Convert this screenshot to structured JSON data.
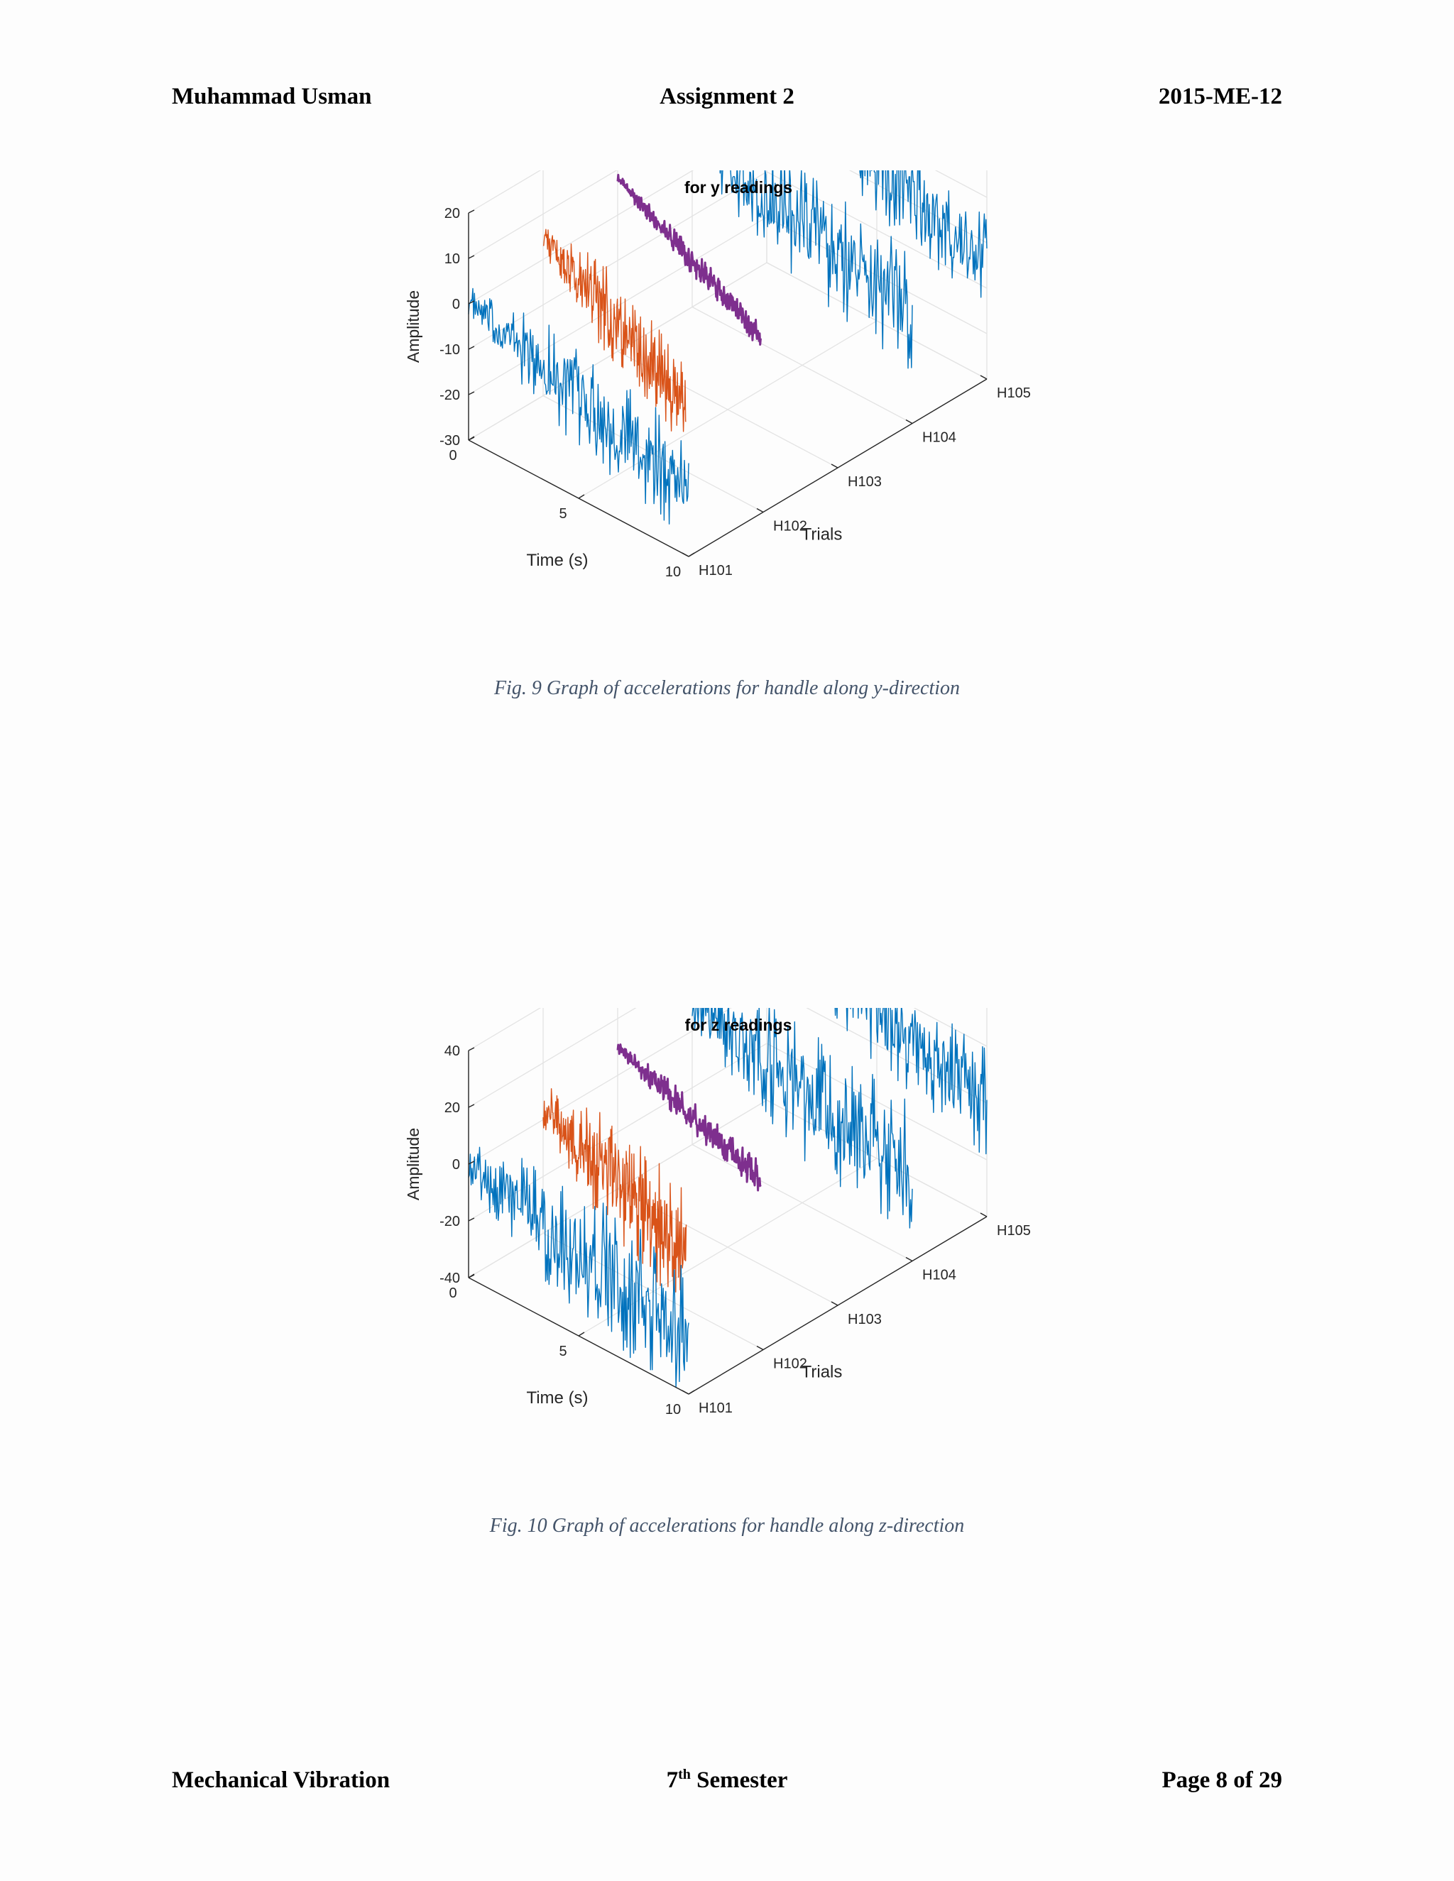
{
  "header": {
    "left": "Muhammad Usman",
    "center": "Assignment 2",
    "right": "2015-ME-12"
  },
  "footer": {
    "left": "Mechanical Vibration",
    "center_base": "7",
    "center_sup": "th",
    "center_rest": " Semester",
    "right": "Page 8 of 29"
  },
  "captions": [
    "Fig.  9 Graph of accelerations for handle along y-direction",
    "Fig.  10 Graph of accelerations for handle along z-direction"
  ],
  "colors": {
    "H101": "#0072bd",
    "H102": "#d95319",
    "H103": "#7e2f8e",
    "H104": "#0072bd",
    "H105": "#0072bd"
  },
  "chart_data": [
    {
      "type": "line",
      "projection": "3d",
      "title": "for y readings",
      "xlabel": "Time (s)",
      "ylabel": "Trials",
      "zlabel": "Amplitude",
      "x_ticks": [
        "0",
        "5",
        "10"
      ],
      "y_ticks": [
        "H101",
        "H102",
        "H103",
        "H104",
        "H105"
      ],
      "z_ticks": [
        "-30",
        "-20",
        "-10",
        "0",
        "10",
        "20"
      ],
      "xlim": [
        0,
        10
      ],
      "zlim": [
        -30,
        20
      ],
      "grid": true,
      "series": [
        {
          "trial": "H101",
          "duration": 10,
          "baseline_start": 0,
          "baseline_end": -15,
          "noise": 12
        },
        {
          "trial": "H102",
          "duration": 6.5,
          "baseline_start": 5,
          "baseline_end": -15,
          "noise": 10
        },
        {
          "trial": "H103",
          "duration": 6.5,
          "baseline_start": 8,
          "baseline_end": -10,
          "noise": 3
        },
        {
          "trial": "H104",
          "duration": 10,
          "baseline_start": 7,
          "baseline_end": -5,
          "noise": 14
        },
        {
          "trial": "H105",
          "duration": 10,
          "baseline_start": 15,
          "baseline_end": -5,
          "noise": 12
        }
      ]
    },
    {
      "type": "line",
      "projection": "3d",
      "title": "for z readings",
      "xlabel": "Time (s)",
      "ylabel": "Trials",
      "zlabel": "Amplitude",
      "x_ticks": [
        "0",
        "5",
        "10"
      ],
      "y_ticks": [
        "H101",
        "H102",
        "H103",
        "H104",
        "H105"
      ],
      "z_ticks": [
        "-40",
        "-20",
        "0",
        "20",
        "40"
      ],
      "xlim": [
        0,
        10
      ],
      "zlim": [
        -40,
        40
      ],
      "grid": true,
      "series": [
        {
          "trial": "H101",
          "duration": 10,
          "baseline_start": 0,
          "baseline_end": -20,
          "noise": 25
        },
        {
          "trial": "H102",
          "duration": 6.5,
          "baseline_start": 5,
          "baseline_end": -20,
          "noise": 22
        },
        {
          "trial": "H103",
          "duration": 6.5,
          "baseline_start": 10,
          "baseline_end": -10,
          "noise": 6
        },
        {
          "trial": "H104",
          "duration": 10,
          "baseline_start": 10,
          "baseline_end": -10,
          "noise": 25
        },
        {
          "trial": "H105",
          "duration": 10,
          "baseline_start": 25,
          "baseline_end": 0,
          "noise": 20
        }
      ]
    }
  ]
}
